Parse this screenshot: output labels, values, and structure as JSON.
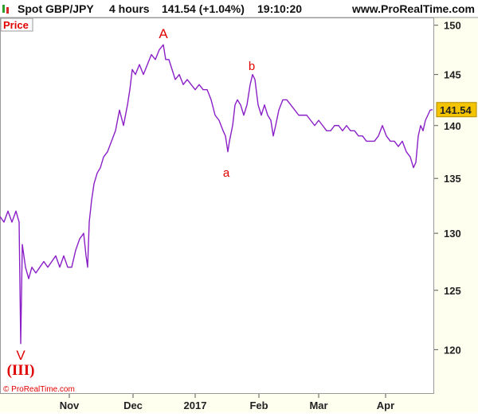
{
  "chart_data": {
    "type": "line",
    "header": [
      "Spot GBP/JPY",
      "4 hours",
      "141.54 (+1.04%)",
      "19:10:20"
    ],
    "site": "www.ProRealTime.com",
    "panel_label": "Price",
    "copyright": "© ProRealTime.com",
    "last_label": "141.54",
    "annotations": [
      "A",
      "b",
      "a",
      "V",
      "(III)"
    ],
    "log_scale": true,
    "xlim": [
      0,
      545
    ],
    "xticks": [
      {
        "value": 87,
        "label": "Nov"
      },
      {
        "value": 167,
        "label": "Dec"
      },
      {
        "value": 245,
        "label": "2017"
      },
      {
        "value": 325,
        "label": "Feb"
      },
      {
        "value": 400,
        "label": "Mar"
      },
      {
        "value": 484,
        "label": "Apr"
      }
    ],
    "ylim": [
      116.4,
      150.8
    ],
    "yticks": [
      120,
      125,
      130,
      135,
      140,
      145,
      150
    ],
    "x": [
      0,
      5,
      10,
      15,
      20,
      24,
      26,
      28,
      32,
      36,
      40,
      45,
      50,
      55,
      60,
      65,
      70,
      75,
      80,
      85,
      90,
      95,
      100,
      105,
      108,
      110,
      112,
      115,
      118,
      122,
      126,
      130,
      135,
      140,
      145,
      150,
      155,
      160,
      163,
      166,
      170,
      175,
      180,
      185,
      190,
      195,
      200,
      205,
      208,
      212,
      216,
      220,
      225,
      230,
      235,
      240,
      245,
      250,
      255,
      260,
      265,
      270,
      275,
      280,
      283,
      286,
      288,
      292,
      295,
      298,
      302,
      306,
      310,
      314,
      317,
      320,
      324,
      328,
      332,
      336,
      340,
      343,
      346,
      350,
      355,
      360,
      365,
      370,
      375,
      380,
      385,
      390,
      395,
      400,
      405,
      410,
      415,
      420,
      425,
      430,
      435,
      440,
      445,
      450,
      455,
      460,
      465,
      470,
      475,
      480,
      485,
      490,
      495,
      500,
      505,
      510,
      515,
      519,
      522,
      525,
      528,
      531,
      534,
      537,
      540,
      543
    ],
    "series": [
      {
        "name": "GBP/JPY",
        "color": "#8a1fc7",
        "values": [
          131.5,
          131,
          132,
          131,
          132,
          131,
          120.5,
          129,
          127,
          126,
          127,
          126.5,
          127,
          127.5,
          127,
          127.5,
          128,
          127,
          128,
          127,
          127,
          128.5,
          129.5,
          130,
          128,
          127,
          131,
          133,
          134.5,
          135.5,
          136,
          137,
          137.5,
          138.5,
          139.5,
          141.5,
          140,
          142,
          143.5,
          145.5,
          145,
          146,
          145,
          146,
          147,
          146.5,
          147.5,
          148,
          146.5,
          146.5,
          145.5,
          144.5,
          145,
          144,
          144.5,
          144,
          143.5,
          144,
          143.5,
          143.5,
          142.5,
          141,
          140.5,
          139.5,
          139,
          137.5,
          138.5,
          140,
          142,
          142.5,
          142,
          141,
          142,
          144,
          145,
          144.5,
          142,
          141,
          142,
          141,
          140.5,
          139,
          140,
          141.5,
          142.5,
          142.5,
          142,
          141.5,
          141,
          141,
          141,
          140.5,
          140,
          140.5,
          140,
          139.5,
          139.5,
          140,
          140,
          139.5,
          140,
          139.5,
          139.5,
          139,
          139,
          138.5,
          138.5,
          138.5,
          139,
          140,
          139,
          138.5,
          138.5,
          138,
          138.5,
          137.5,
          137,
          136,
          136.5,
          139,
          140,
          139.5,
          140.5,
          141,
          141.5,
          141.54
        ]
      }
    ]
  }
}
